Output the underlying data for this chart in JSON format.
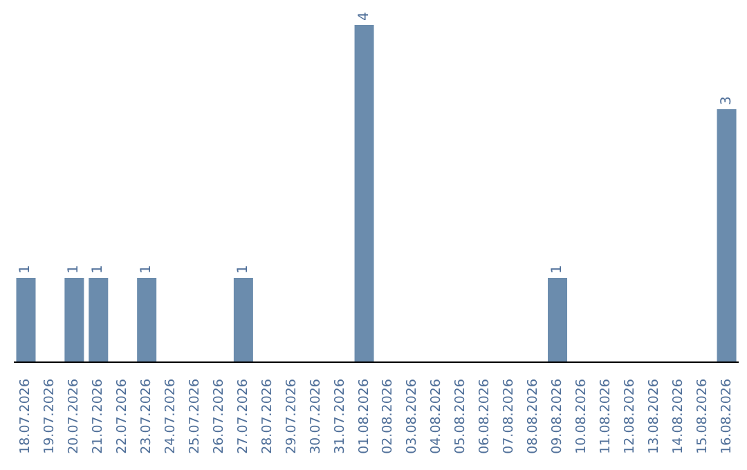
{
  "chart_data": {
    "type": "bar",
    "categories": [
      "18.07.2026",
      "19.07.2026",
      "20.07.2026",
      "21.07.2026",
      "22.07.2026",
      "23.07.2026",
      "24.07.2026",
      "25.07.2026",
      "26.07.2026",
      "27.07.2026",
      "28.07.2026",
      "29.07.2026",
      "30.07.2026",
      "31.07.2026",
      "01.08.2026",
      "02.08.2026",
      "03.08.2026",
      "04.08.2026",
      "05.08.2026",
      "06.08.2026",
      "07.08.2026",
      "08.08.2026",
      "09.08.2026",
      "10.08.2026",
      "11.08.2026",
      "12.08.2026",
      "13.08.2026",
      "14.08.2026",
      "15.08.2026",
      "16.08.2026"
    ],
    "values": [
      1,
      null,
      1,
      1,
      null,
      1,
      null,
      null,
      null,
      1,
      null,
      null,
      null,
      null,
      4,
      null,
      null,
      null,
      null,
      null,
      null,
      null,
      1,
      null,
      null,
      null,
      null,
      null,
      null,
      3
    ],
    "color": "#6b8cad",
    "data_labels": true
  }
}
